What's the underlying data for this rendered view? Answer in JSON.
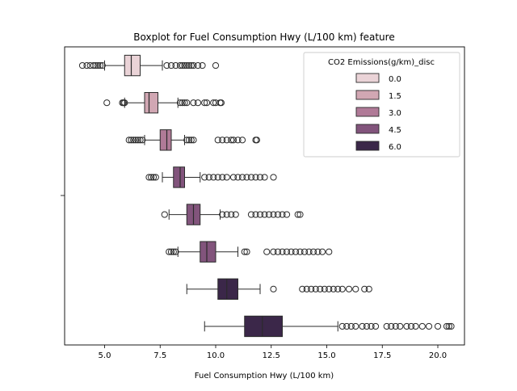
{
  "chart_data": {
    "type": "boxplot",
    "orientation": "horizontal",
    "title": "Boxplot for Fuel Consumption Hwy (L/100 km) feature",
    "xlabel": "Fuel Consumption Hwy (L/100 km)",
    "ylabel": "",
    "xlim": [
      3.2,
      21.2
    ],
    "xticks": [
      5.0,
      7.5,
      10.0,
      12.5,
      15.0,
      17.5,
      20.0
    ],
    "x_tick_labels": [
      "5.0",
      "7.5",
      "10.0",
      "12.5",
      "15.0",
      "17.5",
      "20.0"
    ],
    "grid": false,
    "legend": {
      "title": "CO2 Emissions(g/km)_disc",
      "position": "upper right",
      "entries": [
        "0.0",
        "1.5",
        "3.0",
        "4.5",
        "6.0"
      ]
    },
    "palette": [
      "#ead3d7",
      "#d1a7b3",
      "#b07a97",
      "#82547c",
      "#3b2749"
    ],
    "edge_color": "#2b2b2b",
    "boxes": [
      {
        "group": "0.0",
        "q1": 5.9,
        "median": 6.2,
        "q3": 6.6,
        "whisker_low": 5.0,
        "whisker_high": 7.6,
        "outliers": [
          4.0,
          4.2,
          4.35,
          4.5,
          4.6,
          4.7,
          4.8,
          4.9,
          7.8,
          8.0,
          8.2,
          8.4,
          8.5,
          8.6,
          8.7,
          8.8,
          8.9,
          9.0,
          9.2,
          9.4,
          10.0
        ]
      },
      {
        "group": "1.5",
        "q1": 6.8,
        "median": 7.0,
        "q3": 7.4,
        "whisker_low": 5.9,
        "whisker_high": 8.3,
        "outliers": [
          5.1,
          5.8,
          5.85,
          5.9,
          8.4,
          8.5,
          8.6,
          8.7,
          9.0,
          9.2,
          9.5,
          9.6,
          9.9,
          10.0,
          10.2,
          10.25
        ]
      },
      {
        "group": "3.0",
        "q1": 7.5,
        "median": 7.8,
        "q3": 8.0,
        "whisker_low": 6.8,
        "whisker_high": 8.6,
        "outliers": [
          6.1,
          6.2,
          6.3,
          6.4,
          6.5,
          6.6,
          6.7,
          8.7,
          8.8,
          8.9,
          9.0,
          10.1,
          10.3,
          10.5,
          10.7,
          10.8,
          11.0,
          11.2,
          11.8,
          11.85
        ]
      },
      {
        "group": "4.5",
        "q1": 8.1,
        "median": 8.4,
        "q3": 8.6,
        "whisker_low": 7.6,
        "whisker_high": 9.3,
        "outliers": [
          7.0,
          7.1,
          7.2,
          7.3,
          9.5,
          9.7,
          9.9,
          10.1,
          10.3,
          10.5,
          10.8,
          11.0,
          11.2,
          11.4,
          11.6,
          11.8,
          12.0,
          12.2,
          12.6
        ]
      },
      {
        "group": "4.5",
        "q1": 8.7,
        "median": 9.0,
        "q3": 9.3,
        "whisker_low": 7.9,
        "whisker_high": 10.2,
        "outliers": [
          7.7,
          10.3,
          10.5,
          10.7,
          10.9,
          11.6,
          11.8,
          12.0,
          12.2,
          12.4,
          12.6,
          12.8,
          13.0,
          13.2,
          13.7,
          13.8
        ]
      },
      {
        "group": "4.5",
        "q1": 9.3,
        "median": 9.6,
        "q3": 10.0,
        "whisker_low": 8.3,
        "whisker_high": 11.0,
        "outliers": [
          7.9,
          8.0,
          8.1,
          8.2,
          11.3,
          11.4,
          12.3,
          12.6,
          12.8,
          13.0,
          13.2,
          13.4,
          13.6,
          13.8,
          14.0,
          14.2,
          14.4,
          14.6,
          14.8,
          15.1
        ]
      },
      {
        "group": "6.0",
        "q1": 10.1,
        "median": 10.5,
        "q3": 11.0,
        "whisker_low": 8.7,
        "whisker_high": 12.0,
        "outliers": [
          12.6,
          13.9,
          14.1,
          14.3,
          14.5,
          14.7,
          14.9,
          15.1,
          15.3,
          15.5,
          15.7,
          16.0,
          16.3,
          16.7,
          16.9
        ]
      },
      {
        "group": "6.0",
        "q1": 11.3,
        "median": 12.1,
        "q3": 13.0,
        "whisker_low": 9.5,
        "whisker_high": 15.5,
        "outliers": [
          15.7,
          15.9,
          16.1,
          16.3,
          16.6,
          16.8,
          17.0,
          17.2,
          17.7,
          17.9,
          18.1,
          18.3,
          18.6,
          18.8,
          19.0,
          19.3,
          19.6,
          20.0,
          20.4,
          20.5,
          20.6
        ]
      }
    ]
  }
}
